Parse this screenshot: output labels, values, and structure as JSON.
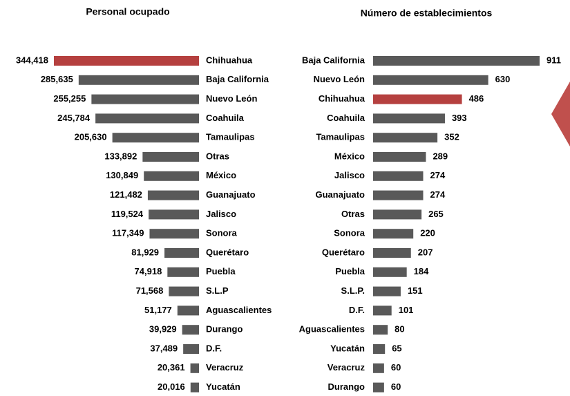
{
  "chart_data": [
    {
      "type": "bar",
      "orientation": "horizontal",
      "direction": "left",
      "title": "Personal ocupado",
      "categories": [
        "Chihuahua",
        "Baja California",
        "Nuevo León",
        "Coahuila",
        "Tamaulipas",
        "Otras",
        "México",
        "Guanajuato",
        "Jalisco",
        "Sonora",
        "Querétaro",
        "Puebla",
        "S.L.P",
        "Aguascalientes",
        "Durango",
        "D.F.",
        "Veracruz",
        "Yucatán"
      ],
      "values": [
        344418,
        285635,
        255255,
        245784,
        205630,
        133892,
        130849,
        121482,
        119524,
        117349,
        81929,
        74918,
        71568,
        51177,
        39929,
        37489,
        20361,
        20016
      ],
      "value_labels": [
        "344,418",
        "285,635",
        "255,255",
        "245,784",
        "205,630",
        "133,892",
        "130,849",
        "121,482",
        "119,524",
        "117,349",
        "81,929",
        "74,918",
        "71,568",
        "51,177",
        "39,929",
        "37,489",
        "20,361",
        "20,016"
      ],
      "colors": [
        "#b5403f",
        "#595959",
        "#595959",
        "#595959",
        "#595959",
        "#595959",
        "#595959",
        "#595959",
        "#595959",
        "#595959",
        "#595959",
        "#595959",
        "#595959",
        "#595959",
        "#595959",
        "#595959",
        "#595959",
        "#595959"
      ]
    },
    {
      "type": "bar",
      "orientation": "horizontal",
      "direction": "right",
      "title": "Número de establecimientos",
      "categories": [
        "Baja California",
        "Nuevo León",
        "Chihuahua",
        "Coahuila",
        "Tamaulipas",
        "México",
        "Jalisco",
        "Guanajuato",
        "Otras",
        "Sonora",
        "Querétaro",
        "Puebla",
        "S.L.P.",
        "D.F.",
        "Aguascalientes",
        "Yucatán",
        "Veracruz",
        "Durango"
      ],
      "values": [
        911,
        630,
        486,
        393,
        352,
        289,
        274,
        274,
        265,
        220,
        207,
        184,
        151,
        101,
        80,
        65,
        60,
        60
      ],
      "colors": [
        "#595959",
        "#595959",
        "#b5403f",
        "#595959",
        "#595959",
        "#595959",
        "#595959",
        "#595959",
        "#595959",
        "#595959",
        "#595959",
        "#595959",
        "#595959",
        "#595959",
        "#595959",
        "#595959",
        "#595959",
        "#595959"
      ]
    }
  ]
}
